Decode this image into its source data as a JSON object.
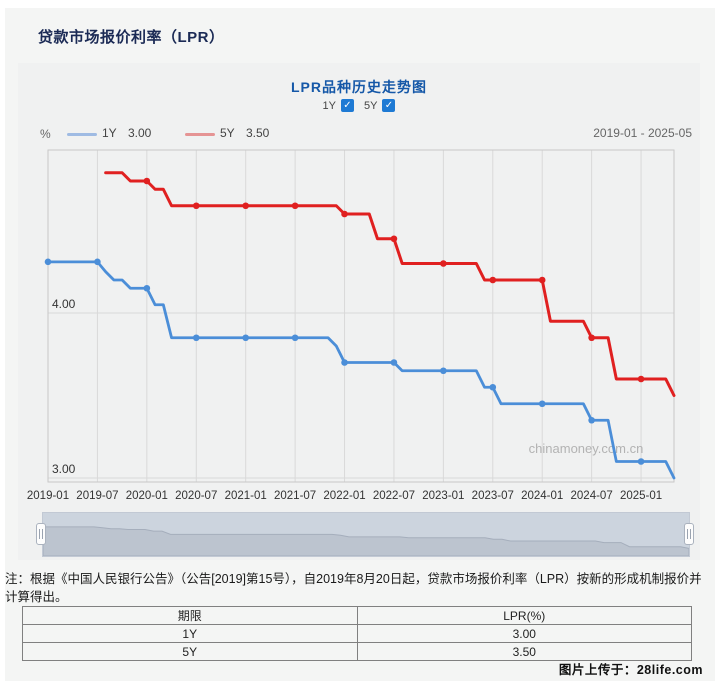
{
  "page": {
    "title": "贷款市场报价利率（LPR）",
    "footer_credit": "图片上传于：28life.com"
  },
  "chart": {
    "title": "LPR品种历史走势图",
    "unit_label": "%",
    "date_range": "2019-01 - 2025-05",
    "watermark": "chinamoney.com.cn",
    "checkboxes": [
      {
        "label": "1Y",
        "checked": true,
        "check_glyph": "✓"
      },
      {
        "label": "5Y",
        "checked": true,
        "check_glyph": "✓"
      }
    ],
    "legend": [
      {
        "label": "1Y",
        "value": "3.00",
        "swatch_color": "#9fbbe3"
      },
      {
        "label": "5Y",
        "value": "3.50",
        "swatch_color": "#e59494"
      }
    ],
    "colors": {
      "checkbox_blue": "#1e7ad4",
      "grid": "#d9d9d9",
      "axis_border": "#c8c8c8",
      "tick_text": "#333333",
      "watermark_gray": "#b3b3b3"
    }
  },
  "chart_data": {
    "type": "line",
    "title": "LPR品种历史走势图",
    "ylabel": "%",
    "x_interval": "monthly",
    "x_start": "2019-01",
    "x_end": "2025-05",
    "x_months_span": 77,
    "x_tick_labels": [
      "2019-01",
      "2019-07",
      "2020-01",
      "2020-07",
      "2021-01",
      "2021-07",
      "2022-01",
      "2022-07",
      "2023-01",
      "2023-07",
      "2024-01",
      "2024-07",
      "2025-01"
    ],
    "x_tick_every_months": 6,
    "y_gridlines": [
      {
        "label": "4.00",
        "value": 4.0
      },
      {
        "label": "3.00",
        "value": 3.0
      }
    ],
    "ylim": [
      2.97,
      5.01
    ],
    "marker_every_months": 6,
    "grid": true,
    "legend_position": "top-left",
    "series": [
      {
        "name": "1Y",
        "color": "#4b8ed8",
        "line_width": 2.8,
        "start_month": "2019-01",
        "start_index": 0,
        "latest_value": 3.0,
        "values": [
          4.31,
          4.31,
          4.31,
          4.31,
          4.31,
          4.31,
          4.31,
          4.25,
          4.2,
          4.2,
          4.15,
          4.15,
          4.15,
          4.05,
          4.05,
          3.85,
          3.85,
          3.85,
          3.85,
          3.85,
          3.85,
          3.85,
          3.85,
          3.85,
          3.85,
          3.85,
          3.85,
          3.85,
          3.85,
          3.85,
          3.85,
          3.85,
          3.85,
          3.85,
          3.85,
          3.8,
          3.7,
          3.7,
          3.7,
          3.7,
          3.7,
          3.7,
          3.7,
          3.65,
          3.65,
          3.65,
          3.65,
          3.65,
          3.65,
          3.65,
          3.65,
          3.65,
          3.65,
          3.55,
          3.55,
          3.45,
          3.45,
          3.45,
          3.45,
          3.45,
          3.45,
          3.45,
          3.45,
          3.45,
          3.45,
          3.45,
          3.35,
          3.35,
          3.35,
          3.1,
          3.1,
          3.1,
          3.1,
          3.1,
          3.1,
          3.1,
          3.0
        ]
      },
      {
        "name": "5Y",
        "color": "#e02020",
        "line_width": 3,
        "start_month": "2019-08",
        "start_index": 7,
        "latest_value": 3.5,
        "values": [
          4.85,
          4.85,
          4.85,
          4.8,
          4.8,
          4.8,
          4.75,
          4.75,
          4.65,
          4.65,
          4.65,
          4.65,
          4.65,
          4.65,
          4.65,
          4.65,
          4.65,
          4.65,
          4.65,
          4.65,
          4.65,
          4.65,
          4.65,
          4.65,
          4.65,
          4.65,
          4.65,
          4.65,
          4.65,
          4.6,
          4.6,
          4.6,
          4.6,
          4.45,
          4.45,
          4.45,
          4.3,
          4.3,
          4.3,
          4.3,
          4.3,
          4.3,
          4.3,
          4.3,
          4.3,
          4.3,
          4.2,
          4.2,
          4.2,
          4.2,
          4.2,
          4.2,
          4.2,
          4.2,
          3.95,
          3.95,
          3.95,
          3.95,
          3.95,
          3.85,
          3.85,
          3.85,
          3.6,
          3.6,
          3.6,
          3.6,
          3.6,
          3.6,
          3.6,
          3.5
        ]
      }
    ]
  },
  "note": {
    "text": "注：根据《中国人民银行公告》（公告[2019]第15号），自2019年8月20日起，贷款市场报价利率（LPR）按新的形成机制报价并计算得出。"
  },
  "table": {
    "headers": [
      "期限",
      "LPR(%)"
    ],
    "rows": [
      [
        "1Y",
        "3.00"
      ],
      [
        "5Y",
        "3.50"
      ]
    ]
  }
}
